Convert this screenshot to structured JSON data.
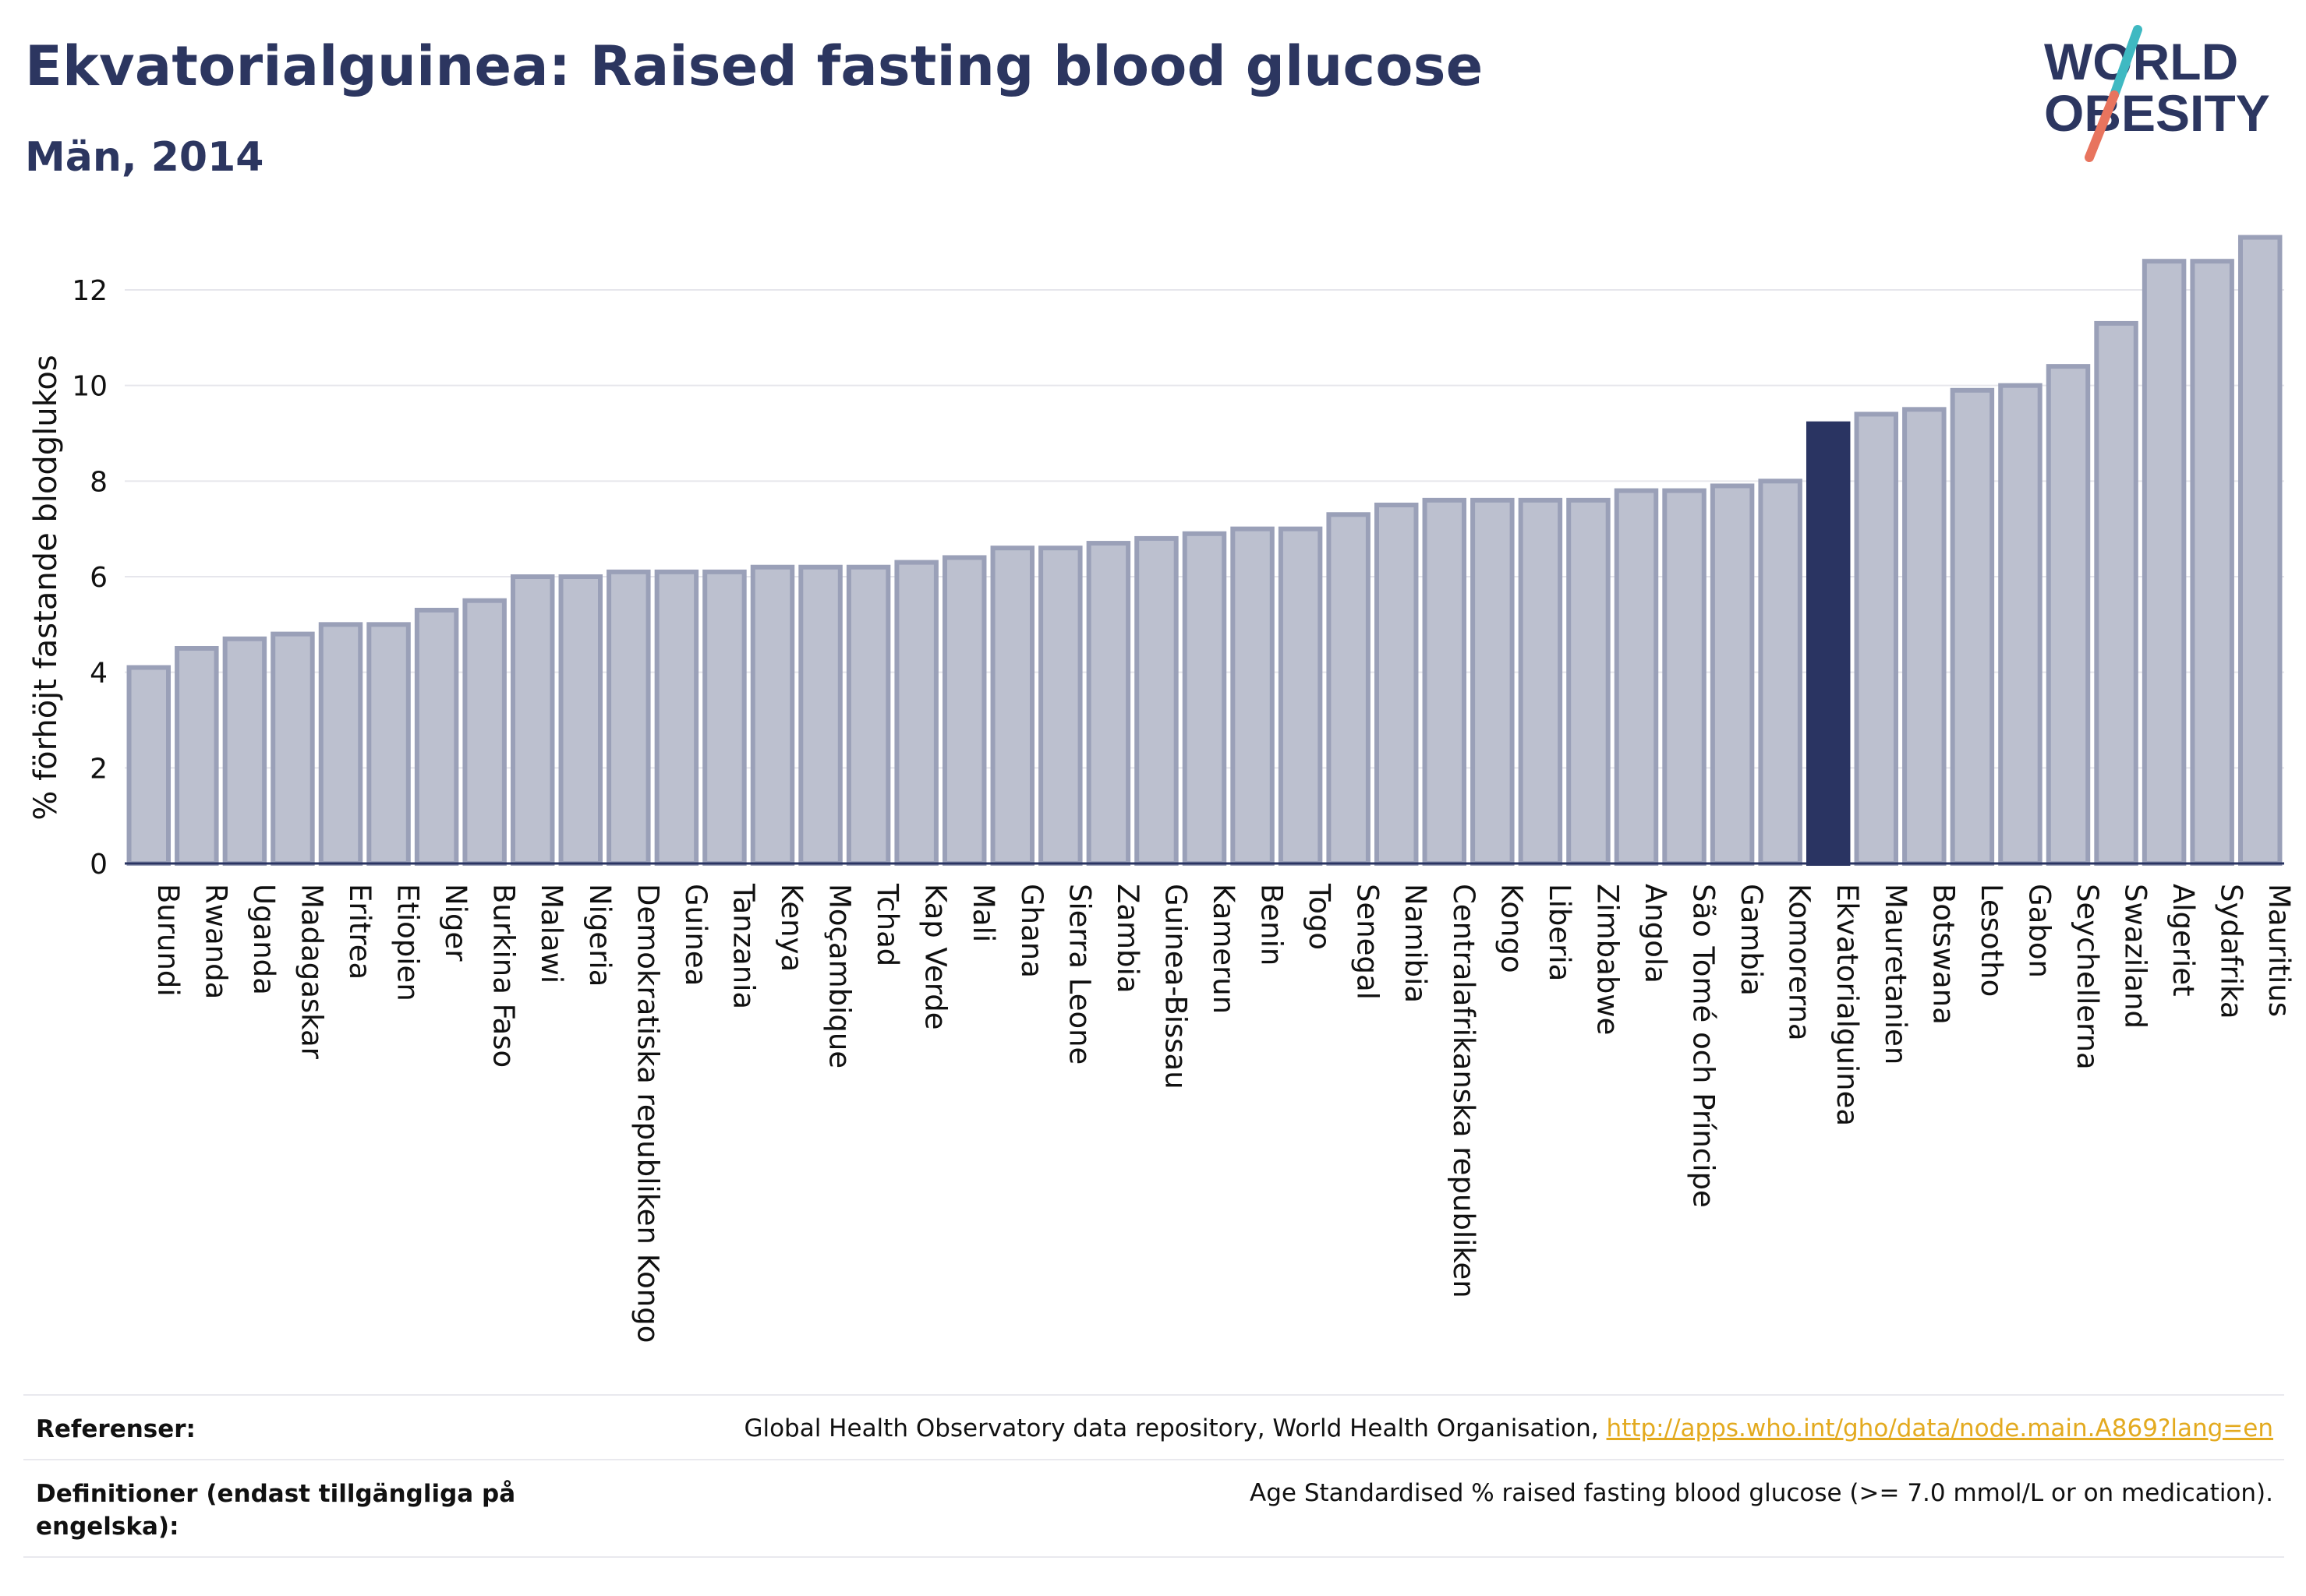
{
  "header": {
    "title": "Ekvatorialguinea: Raised fasting blood glucose",
    "subtitle": "Män, 2014"
  },
  "logo": {
    "line1": "WORLD",
    "line2": "OBESITY",
    "slash_top_color": "#3fb9c2",
    "slash_bottom_color": "#e8745e",
    "text_color": "#2c3660"
  },
  "chart_data": {
    "type": "bar",
    "ylabel": "% förhöjt fastande blodglukos",
    "ylim": [
      0,
      13.5
    ],
    "yticks": [
      0,
      2,
      4,
      6,
      8,
      10,
      12
    ],
    "grid": true,
    "highlight": "Ekvatorialguinea",
    "colors": {
      "bar_fill": "#bcc0cf",
      "bar_stroke": "#9aa0b8",
      "highlight_fill": "#2a3462",
      "grid": "#e6e6ec",
      "axis": "#2a3462"
    },
    "categories": [
      "Burundi",
      "Rwanda",
      "Uganda",
      "Madagaskar",
      "Eritrea",
      "Etiopien",
      "Niger",
      "Burkina Faso",
      "Malawi",
      "Nigeria",
      "Demokratiska republiken Kongo",
      "Guinea",
      "Tanzania",
      "Kenya",
      "Moçambique",
      "Tchad",
      "Kap Verde",
      "Mali",
      "Ghana",
      "Sierra Leone",
      "Zambia",
      "Guinea-Bissau",
      "Kamerun",
      "Benin",
      "Togo",
      "Senegal",
      "Namibia",
      "Centralafrikanska republiken",
      "Kongo",
      "Liberia",
      "Zimbabwe",
      "Angola",
      "São Tomé och Príncipe",
      "Gambia",
      "Komorerna",
      "Ekvatorialguinea",
      "Mauretanien",
      "Botswana",
      "Lesotho",
      "Gabon",
      "Seychellerna",
      "Swaziland",
      "Algeriet",
      "Sydafrika",
      "Mauritius"
    ],
    "values": [
      4.1,
      4.5,
      4.7,
      4.8,
      5.0,
      5.0,
      5.3,
      5.5,
      6.0,
      6.0,
      6.1,
      6.1,
      6.1,
      6.2,
      6.2,
      6.2,
      6.3,
      6.4,
      6.6,
      6.6,
      6.7,
      6.8,
      6.9,
      7.0,
      7.0,
      7.3,
      7.5,
      7.6,
      7.6,
      7.6,
      7.6,
      7.8,
      7.8,
      7.9,
      8.0,
      9.2,
      9.4,
      9.5,
      9.9,
      10.0,
      10.4,
      11.3,
      12.6,
      12.6,
      13.1
    ]
  },
  "references": {
    "refs_label": "Referenser:",
    "refs_text": "Global Health Observatory data repository, World Health Organisation, ",
    "refs_link": "http://apps.who.int/gho/data/node.main.A869?lang=en",
    "defs_label": "Definitioner (endast tillgängliga på engelska):",
    "defs_text": "Age Standardised % raised fasting blood glucose (>= 7.0 mmol/L or on medication)."
  }
}
